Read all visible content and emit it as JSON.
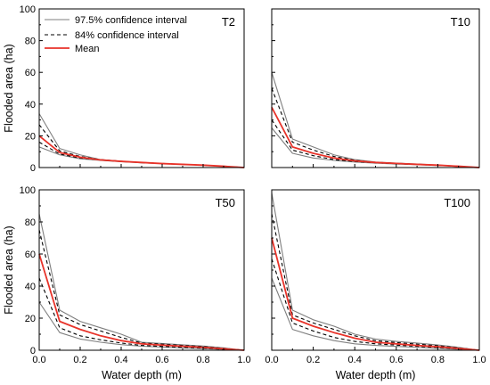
{
  "chart_data": {
    "type": "line",
    "xlabel": "Water depth (m)",
    "ylabel": "Flooded area (ha)",
    "xlim": [
      0,
      1
    ],
    "ylim": [
      0,
      100
    ],
    "x_ticks": [
      0.0,
      0.2,
      0.4,
      0.6,
      0.8,
      1.0
    ],
    "x_tick_labels": [
      "0.0",
      "0.2",
      "0.4",
      "0.6",
      "0.8",
      "1.0"
    ],
    "y_ticks": [
      0,
      20,
      40,
      60,
      80,
      100
    ],
    "y_tick_labels": [
      "0",
      "20",
      "40",
      "60",
      "80",
      "100"
    ],
    "grid": false,
    "legend_placement": "top-left",
    "legend": [
      {
        "label": "97.5% confidence interval",
        "style": "solid",
        "color": "#7f7f7f"
      },
      {
        "label": "84% confidence interval",
        "style": "dashed",
        "color": "#000000"
      },
      {
        "label": "Mean",
        "style": "solid",
        "color": "#e8332a"
      }
    ],
    "x": [
      0.0,
      0.1,
      0.2,
      0.3,
      0.4,
      0.5,
      0.6,
      0.7,
      0.8,
      0.9,
      1.0
    ],
    "panels": [
      {
        "label": "T2",
        "series": [
          {
            "name": "97.5% confidence interval",
            "style": "ci97",
            "values": [
              34,
              12,
              8,
              5,
              4,
              3,
              2.5,
              2,
              1.5,
              0.8,
              0
            ]
          },
          {
            "name": "97.5% confidence interval",
            "style": "ci97",
            "values": [
              13,
              8,
              5.5,
              4.5,
              3.7,
              3,
              2.5,
              2,
              1.5,
              0.8,
              0
            ]
          },
          {
            "name": "84% confidence interval",
            "style": "ci84",
            "values": [
              27,
              10.5,
              7,
              5,
              4,
              3.2,
              2.6,
              2,
              1.5,
              0.8,
              0
            ]
          },
          {
            "name": "84% confidence interval",
            "style": "ci84",
            "values": [
              16,
              8.5,
              6,
              4.7,
              3.8,
              3.1,
              2.5,
              2,
              1.5,
              0.8,
              0
            ]
          },
          {
            "name": "Mean",
            "style": "mean",
            "values": [
              20,
              9.5,
              6.5,
              4.8,
              3.9,
              3.2,
              2.5,
              2,
              1.5,
              0.8,
              0
            ]
          }
        ]
      },
      {
        "label": "T10",
        "series": [
          {
            "name": "97.5% confidence interval",
            "style": "ci97",
            "values": [
              60,
              18,
              13,
              8,
              5,
              3.5,
              2.8,
              2.2,
              1.6,
              0.8,
              0
            ]
          },
          {
            "name": "97.5% confidence interval",
            "style": "ci97",
            "values": [
              25,
              9,
              6,
              4.5,
              3.5,
              2.8,
              2.2,
              1.8,
              1.3,
              0.7,
              0
            ]
          },
          {
            "name": "84% confidence interval",
            "style": "ci84",
            "values": [
              50,
              16,
              11,
              7,
              4.6,
              3.3,
              2.7,
              2.1,
              1.5,
              0.8,
              0
            ]
          },
          {
            "name": "84% confidence interval",
            "style": "ci84",
            "values": [
              30,
              11,
              7.5,
              5,
              3.8,
              3,
              2.4,
              1.9,
              1.4,
              0.7,
              0
            ]
          },
          {
            "name": "Mean",
            "style": "mean",
            "values": [
              38,
              13,
              9,
              6,
              4.2,
              3.2,
              2.6,
              2,
              1.5,
              0.8,
              0
            ]
          }
        ]
      },
      {
        "label": "T50",
        "series": [
          {
            "name": "97.5% confidence interval",
            "style": "ci97",
            "values": [
              85,
              25,
              18,
              14,
              10,
              5,
              4.2,
              3.4,
              2.6,
              1.5,
              0
            ]
          },
          {
            "name": "97.5% confidence interval",
            "style": "ci97",
            "values": [
              30,
              11,
              7,
              5,
              3.5,
              2.5,
              2,
              1.5,
              1,
              0.5,
              0
            ]
          },
          {
            "name": "84% confidence interval",
            "style": "ci84",
            "values": [
              75,
              22,
              16,
              12,
              8,
              4.5,
              3.8,
              3,
              2.3,
              1.2,
              0
            ]
          },
          {
            "name": "84% confidence interval",
            "style": "ci84",
            "values": [
              45,
              14,
              9,
              6.5,
              4.5,
              3,
              2.4,
              1.8,
              1.3,
              0.6,
              0
            ]
          },
          {
            "name": "Mean",
            "style": "mean",
            "values": [
              60,
              18,
              13,
              9,
              6,
              4,
              3.2,
              2.5,
              1.8,
              0.9,
              0
            ]
          }
        ]
      },
      {
        "label": "T100",
        "series": [
          {
            "name": "97.5% confidence interval",
            "style": "ci97",
            "values": [
              98,
              25,
              19,
              15,
              10,
              7,
              5.5,
              4.5,
              3.3,
              1.8,
              0
            ]
          },
          {
            "name": "97.5% confidence interval",
            "style": "ci97",
            "values": [
              45,
              13,
              9,
              6,
              4,
              3,
              2.4,
              1.8,
              1.2,
              0.6,
              0
            ]
          },
          {
            "name": "84% confidence interval",
            "style": "ci84",
            "values": [
              85,
              22,
              17,
              13,
              9,
              6,
              4.8,
              3.8,
              2.8,
              1.5,
              0
            ]
          },
          {
            "name": "84% confidence interval",
            "style": "ci84",
            "values": [
              57,
              17,
              12,
              8,
              5.5,
              4,
              3.2,
              2.4,
              1.7,
              0.8,
              0
            ]
          },
          {
            "name": "Mean",
            "style": "mean",
            "values": [
              70,
              20,
              15,
              11,
              7.5,
              5,
              4,
              3,
              2.2,
              1.1,
              0
            ]
          }
        ]
      }
    ]
  }
}
